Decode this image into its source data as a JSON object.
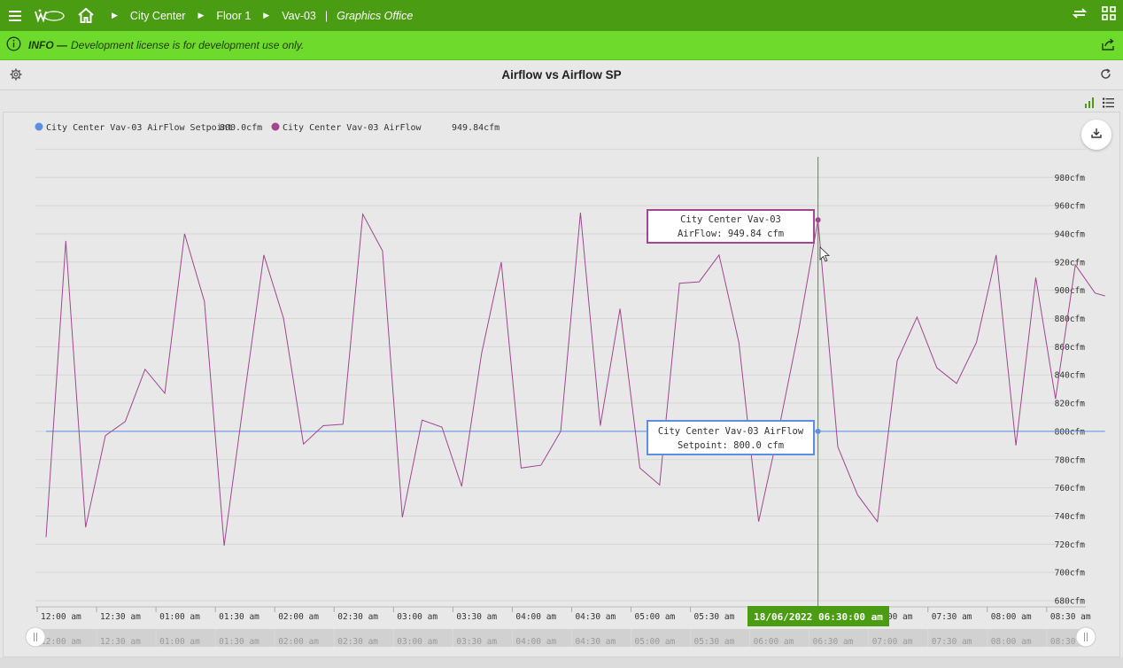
{
  "breadcrumb": {
    "site": "City Center",
    "floor": "Floor 1",
    "device": "Vav-03",
    "view": "Graphics Office"
  },
  "info": {
    "label": "INFO —",
    "message": "Development license is for development use only."
  },
  "panel_title": "Airflow vs Airflow SP",
  "colors": {
    "topbar": "#4a9d12",
    "infobar": "#6edb2c",
    "setpoint": "#5b8fe0",
    "airflow": "#a0478f",
    "cursor": "#4a9d12"
  },
  "icons": [
    "menu-icon",
    "logo-icon",
    "home-icon",
    "sync-icon",
    "grid-icon",
    "info-icon",
    "share-icon",
    "gear-icon",
    "refresh-icon",
    "bar-chart-icon",
    "list-icon",
    "download-icon"
  ],
  "legend": [
    {
      "name": "City Center Vav-03 AirFlow Setpoint",
      "value": "800.0cfm",
      "color": "#5b8fe0"
    },
    {
      "name": "City Center Vav-03 AirFlow",
      "value": "949.84cfm",
      "color": "#a0478f"
    }
  ],
  "tooltips": {
    "airflow_line1": "City Center Vav-03",
    "airflow_line2": "AirFlow: 949.84 cfm",
    "setpoint_line1": "City Center Vav-03 AirFlow",
    "setpoint_line2": "Setpoint: 800.0 cfm"
  },
  "cursor_label": "18/06/2022 06:30:00 am",
  "chart_data": {
    "type": "line",
    "y_unit": "cfm",
    "ylim": [
      680,
      1000
    ],
    "y_ticks": [
      "680cfm",
      "700cfm",
      "720cfm",
      "740cfm",
      "760cfm",
      "780cfm",
      "800cfm",
      "820cfm",
      "840cfm",
      "860cfm",
      "880cfm",
      "900cfm",
      "920cfm",
      "940cfm",
      "960cfm",
      "980cfm"
    ],
    "x_tick_labels": [
      "12:00 am",
      "12:30 am",
      "01:00 am",
      "01:30 am",
      "02:00 am",
      "02:30 am",
      "03:00 am",
      "03:30 am",
      "04:00 am",
      "04:30 am",
      "05:00 am",
      "05:30 am",
      "06:00 am",
      "06:30 am",
      "07:00 am",
      "07:30 am",
      "08:00 am",
      "08:30 am"
    ],
    "navigator_tick_labels": [
      "12:00 am",
      "12:30 am",
      "01:00 am",
      "01:30 am",
      "02:00 am",
      "02:30 am",
      "03:00 am",
      "03:30 am",
      "04:00 am",
      "04:30 am",
      "05:00 am",
      "05:30 am",
      "06:00 am",
      "06:30 am",
      "07:00 am",
      "07:30 am",
      "08:00 am",
      "08:30 am"
    ],
    "grid": true,
    "legend_position": "top-left",
    "series": [
      {
        "name": "City Center Vav-03 AirFlow Setpoint",
        "minutes": [
          0,
          535
        ],
        "values": [
          800.0,
          800.0
        ]
      },
      {
        "name": "City Center Vav-03 AirFlow",
        "minutes": [
          0,
          10,
          20,
          30,
          40,
          50,
          60,
          70,
          80,
          90,
          100,
          110,
          120,
          130,
          140,
          150,
          160,
          170,
          180,
          190,
          200,
          210,
          220,
          230,
          240,
          250,
          260,
          270,
          280,
          290,
          300,
          310,
          320,
          330,
          340,
          350,
          360,
          370,
          380,
          390,
          400,
          410,
          420,
          430,
          440,
          450,
          460,
          470,
          480,
          490,
          500,
          510,
          520,
          530,
          535
        ],
        "values": [
          725,
          935,
          732,
          797,
          807,
          844,
          827,
          940,
          892,
          719,
          823,
          925,
          880,
          791,
          804,
          805,
          954,
          928,
          739,
          808,
          803,
          761,
          855,
          920,
          774,
          776,
          800,
          955,
          804,
          887,
          774,
          762,
          905,
          906,
          925,
          863,
          736,
          800,
          870,
          949.84,
          789,
          755,
          736,
          850,
          881,
          845,
          834,
          863,
          925,
          790,
          909,
          823,
          918,
          898,
          896
        ]
      }
    ],
    "cursor_minute": 390
  }
}
